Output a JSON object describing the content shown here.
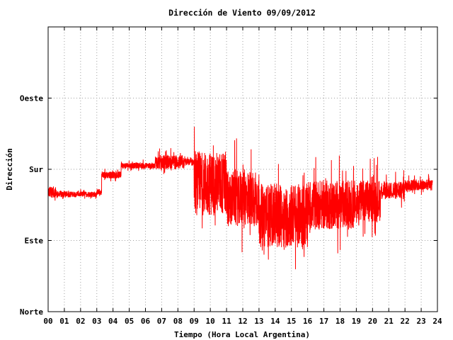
{
  "chart_data": {
    "type": "line",
    "title": "Dirección de Viento 09/09/2012",
    "xlabel": "Tiempo (Hora Local Argentina)",
    "ylabel": "Dirección",
    "xlim": [
      0,
      24
    ],
    "ylim": [
      0,
      400
    ],
    "grid": true,
    "x_ticks": [
      "00",
      "01",
      "02",
      "03",
      "04",
      "05",
      "06",
      "07",
      "08",
      "09",
      "10",
      "11",
      "12",
      "13",
      "14",
      "15",
      "16",
      "17",
      "18",
      "19",
      "20",
      "21",
      "22",
      "23",
      "24"
    ],
    "y_ticks": [
      {
        "value": 0,
        "label": "Norte"
      },
      {
        "value": 100,
        "label": "Este"
      },
      {
        "value": 200,
        "label": "Sur"
      },
      {
        "value": 300,
        "label": "Oeste"
      }
    ],
    "series": [
      {
        "color": "#ff0000",
        "segments": [
          {
            "x0": 0.0,
            "x1": 0.5,
            "base": 168,
            "amp": 8,
            "spike": 18
          },
          {
            "x0": 0.5,
            "x1": 1.0,
            "base": 165,
            "amp": 5,
            "spike": 6
          },
          {
            "x0": 1.0,
            "x1": 3.0,
            "base": 165,
            "amp": 4,
            "spike": 4
          },
          {
            "x0": 3.0,
            "x1": 3.3,
            "base": 168,
            "amp": 4,
            "spike": 6
          },
          {
            "x0": 3.3,
            "x1": 4.5,
            "base": 192,
            "amp": 5,
            "spike": 6
          },
          {
            "x0": 4.5,
            "x1": 6.6,
            "base": 205,
            "amp": 4,
            "spike": 6
          },
          {
            "x0": 6.6,
            "x1": 8.4,
            "base": 210,
            "amp": 10,
            "spike": 14
          },
          {
            "x0": 8.4,
            "x1": 9.0,
            "base": 210,
            "amp": 5,
            "spike": 6
          },
          {
            "x0": 9.0,
            "x1": 11.0,
            "base": 180,
            "amp": 45,
            "spike": 45
          },
          {
            "x0": 11.0,
            "x1": 13.0,
            "base": 160,
            "amp": 40,
            "spike": 45
          },
          {
            "x0": 13.0,
            "x1": 16.0,
            "base": 135,
            "amp": 45,
            "spike": 45
          },
          {
            "x0": 16.0,
            "x1": 19.0,
            "base": 150,
            "amp": 35,
            "spike": 40
          },
          {
            "x0": 19.0,
            "x1": 20.5,
            "base": 155,
            "amp": 30,
            "spike": 40
          },
          {
            "x0": 20.5,
            "x1": 22.0,
            "base": 170,
            "amp": 12,
            "spike": 25
          },
          {
            "x0": 22.0,
            "x1": 23.7,
            "base": 178,
            "amp": 8,
            "spike": 12
          }
        ]
      }
    ]
  }
}
